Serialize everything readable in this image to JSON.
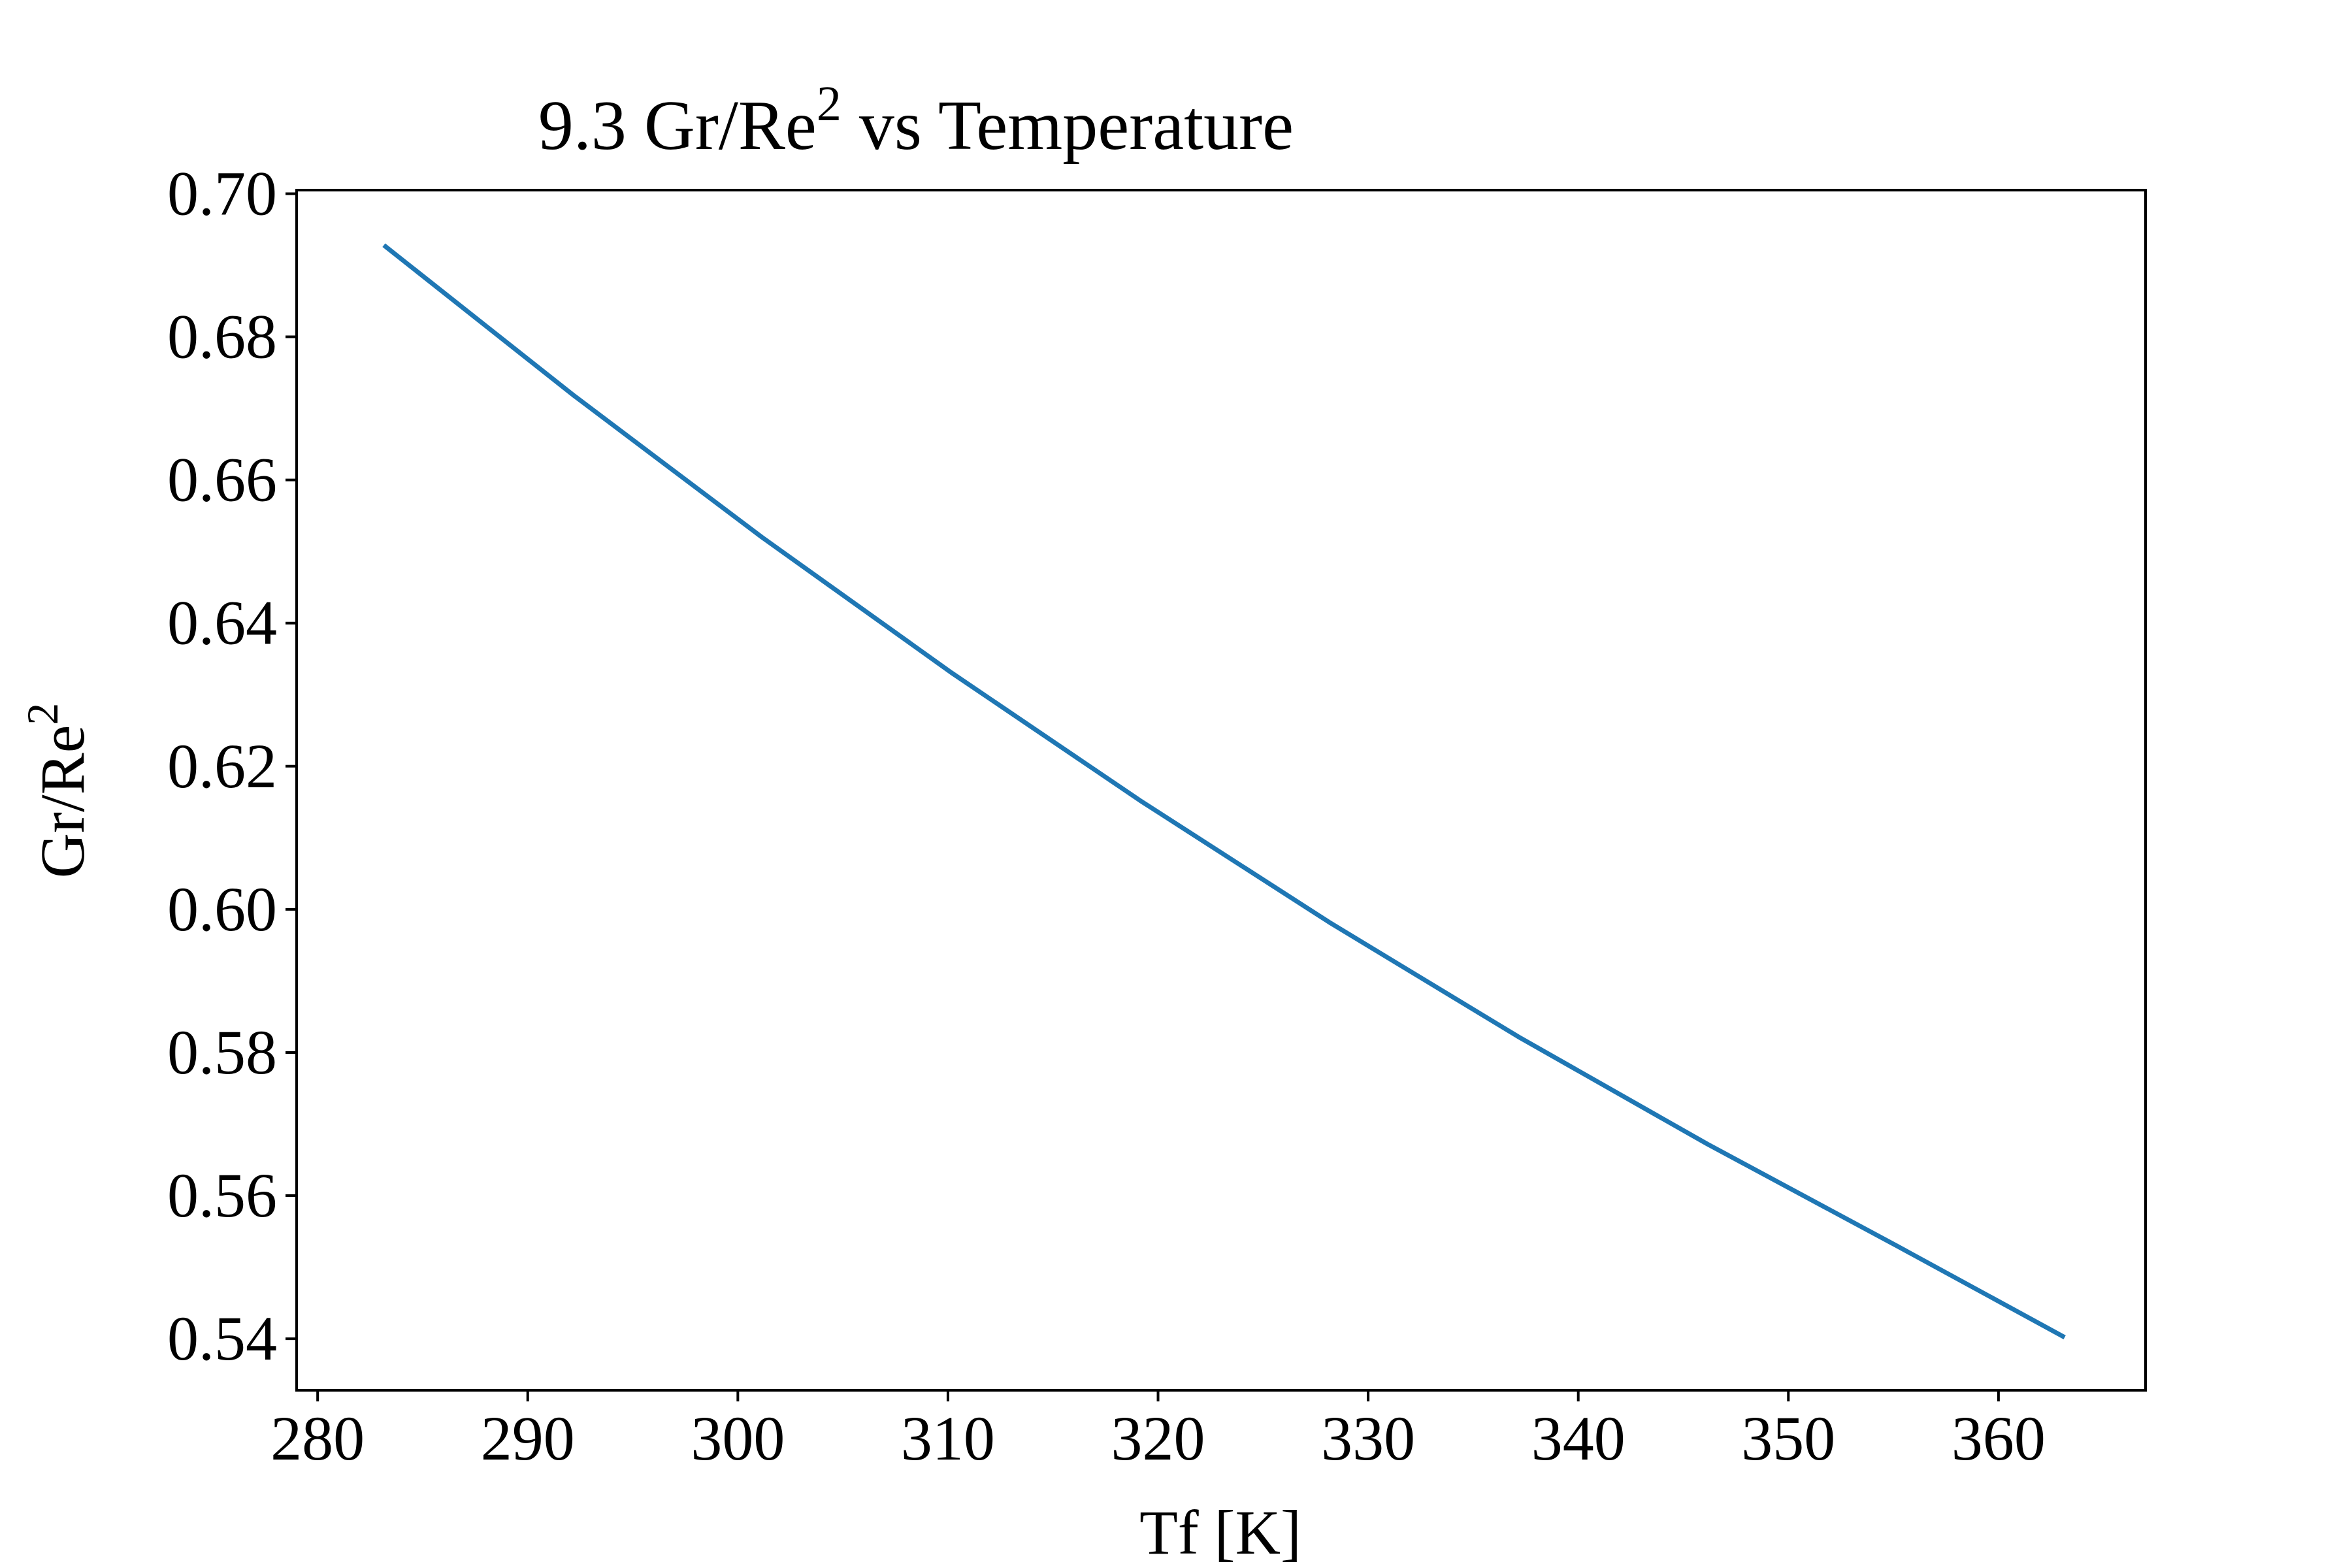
{
  "chart_data": {
    "type": "line",
    "title": "9.3 Gr/Re",
    "title_sup": "2",
    "title_rest": " vs Temperature",
    "xlabel": "Tf [K]",
    "ylabel": "Gr/Re",
    "ylabel_sup": "2",
    "xlim": [
      279.0,
      367.0
    ],
    "ylim": [
      0.5328,
      0.7005
    ],
    "xticks": [
      280,
      290,
      300,
      310,
      320,
      330,
      340,
      350,
      360
    ],
    "yticks": [
      0.54,
      0.56,
      0.58,
      0.6,
      0.62,
      0.64,
      0.66,
      0.68,
      0.7
    ],
    "ytick_labels": [
      "0.54",
      "0.56",
      "0.58",
      "0.60",
      "0.62",
      "0.64",
      "0.66",
      "0.68",
      "0.70"
    ],
    "grid": false,
    "line_color": "#1f77b4",
    "series": [
      {
        "x": [
          283.15,
          292.15,
          301.15,
          310.15,
          319.15,
          328.15,
          337.15,
          346.15,
          355.15,
          363.15
        ],
        "values": [
          0.6928,
          0.6719,
          0.652,
          0.6331,
          0.6152,
          0.5982,
          0.5822,
          0.5672,
          0.553,
          0.5402
        ]
      }
    ]
  }
}
